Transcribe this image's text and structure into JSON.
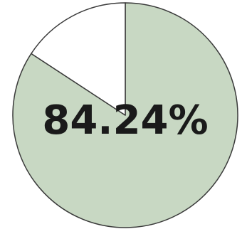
{
  "chart_data": {
    "type": "pie",
    "slices": [
      {
        "value": 84.24,
        "color": "#c8d8c3"
      },
      {
        "value": 15.76,
        "color": "#ffffff"
      }
    ],
    "center_label": "84.24%",
    "start_angle_deg": 0,
    "direction": "clockwise",
    "outline_color": "#3a3a3a"
  }
}
